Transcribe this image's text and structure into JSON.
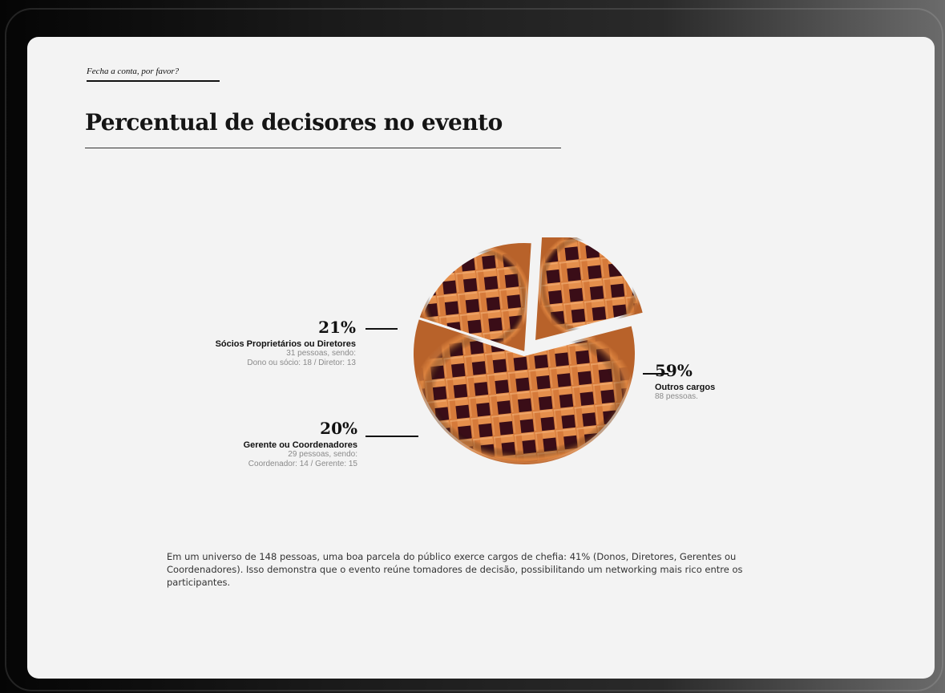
{
  "page": {
    "kicker": "Fecha a conta, por favor?",
    "title": "Percentual de decisores no evento",
    "paragraph": "Em um universo de 148 pessoas, uma boa parcela do público exerce cargos de chefia: 41%  (Donos, Diretores, Gerentes ou Coordenadores). Isso demonstra que o evento reúne tomadores de decisão, possibilitando um networking mais rico entre os participantes."
  },
  "chart_data": {
    "type": "pie",
    "title": "Percentual de decisores no evento",
    "slices": [
      {
        "key": "socios",
        "pct_label": "21%",
        "value": 21,
        "name": "Sócios Proprietários ou Diretores",
        "line1": "31 pessoas, sendo:",
        "line2": "Dono ou sócio: 18 / Diretor: 13"
      },
      {
        "key": "gerentes",
        "pct_label": "20%",
        "value": 20,
        "name": "Gerente ou Coordenadores",
        "line1": "29 pessoas, sendo:",
        "line2": "Coordenador: 14 / Gerente: 15"
      },
      {
        "key": "outros",
        "pct_label": "59%",
        "value": 59,
        "name": "Outros cargos",
        "line1": "88 pessoas.",
        "line2": ""
      }
    ]
  }
}
